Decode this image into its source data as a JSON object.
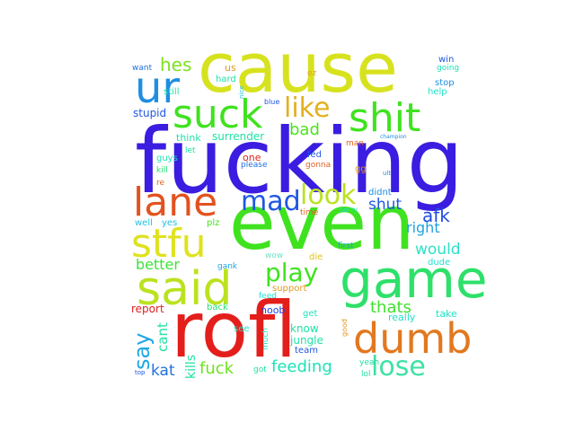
{
  "colors": {
    "background": "#ffffff"
  },
  "words": [
    {
      "text": "cause",
      "color": "#d7e21f"
    },
    {
      "text": "fucking",
      "color": "#3a1de0"
    },
    {
      "text": "even",
      "color": "#3fe21f"
    },
    {
      "text": "rofl",
      "color": "#e31e1b"
    },
    {
      "text": "game",
      "color": "#2ee06a"
    },
    {
      "text": "said",
      "color": "#bbe21f"
    },
    {
      "text": "stfu",
      "color": "#dfe21f"
    },
    {
      "text": "lane",
      "color": "#e2521f"
    },
    {
      "text": "suck",
      "color": "#3fe21f"
    },
    {
      "text": "shit",
      "color": "#3fe21f"
    },
    {
      "text": "ur",
      "color": "#1f8ee2"
    },
    {
      "text": "dumb",
      "color": "#e2781f"
    },
    {
      "text": "like",
      "color": "#e2b01f"
    },
    {
      "text": "look",
      "color": "#bbe21f"
    },
    {
      "text": "mad",
      "color": "#1f57e2"
    },
    {
      "text": "play",
      "color": "#3fe21f"
    },
    {
      "text": "lose",
      "color": "#3fe2a5"
    },
    {
      "text": "say",
      "color": "#1fa7e2"
    },
    {
      "text": "hes",
      "color": "#7ee21f"
    },
    {
      "text": "bad",
      "color": "#4ce21f"
    },
    {
      "text": "afk",
      "color": "#1f4ee2"
    },
    {
      "text": "right",
      "color": "#1fa2e2"
    },
    {
      "text": "shut",
      "color": "#1f57e2"
    },
    {
      "text": "would",
      "color": "#2ee0c7"
    },
    {
      "text": "better",
      "color": "#3fe23a"
    },
    {
      "text": "thats",
      "color": "#3fe22c"
    },
    {
      "text": "feeding",
      "color": "#1fe2b6"
    },
    {
      "text": "fuck",
      "color": "#6ee21f"
    },
    {
      "text": "kat",
      "color": "#1f70e2"
    },
    {
      "text": "cant",
      "color": "#1fe2a5"
    },
    {
      "text": "kills",
      "color": "#1fe2a5"
    },
    {
      "text": "report",
      "color": "#e21f1f"
    },
    {
      "text": "back",
      "color": "#1fe270"
    },
    {
      "text": "noob",
      "color": "#1f44e2"
    },
    {
      "text": "support",
      "color": "#e2981f"
    },
    {
      "text": "feed",
      "color": "#1fe2d7"
    },
    {
      "text": "get",
      "color": "#1fe2c0"
    },
    {
      "text": "know",
      "color": "#1fe2a5"
    },
    {
      "text": "jungle",
      "color": "#1fe2a5"
    },
    {
      "text": "team",
      "color": "#1f57e2"
    },
    {
      "text": "really",
      "color": "#1fe2c7"
    },
    {
      "text": "take",
      "color": "#1fe2c7"
    },
    {
      "text": "dude",
      "color": "#1fe2d7"
    },
    {
      "text": "first",
      "color": "#1fa2e2"
    },
    {
      "text": "die",
      "color": "#e2c21f"
    },
    {
      "text": "wow",
      "color": "#6ee2c4"
    },
    {
      "text": "gank",
      "color": "#1fa2e2"
    },
    {
      "text": "plz",
      "color": "#4ce21f"
    },
    {
      "text": "well",
      "color": "#1fc2e2"
    },
    {
      "text": "yes",
      "color": "#1fc2e2"
    },
    {
      "text": "time",
      "color": "#e2611f"
    },
    {
      "text": "sorry",
      "color": "#1fe2c7"
    },
    {
      "text": "didnt",
      "color": "#1f8ee2"
    },
    {
      "text": "please",
      "color": "#1f70e2"
    },
    {
      "text": "gonna",
      "color": "#e2611f"
    },
    {
      "text": "one",
      "color": "#e2231f"
    },
    {
      "text": "fed",
      "color": "#1f57e2"
    },
    {
      "text": "man",
      "color": "#e2611f"
    },
    {
      "text": "surrender",
      "color": "#1fe2a5"
    },
    {
      "text": "think",
      "color": "#1fe2a5"
    },
    {
      "text": "guys",
      "color": "#1fe2b6"
    },
    {
      "text": "kill",
      "color": "#1fe270"
    },
    {
      "text": "re",
      "color": "#e2611f"
    },
    {
      "text": "let",
      "color": "#1fe2a5"
    },
    {
      "text": "stupid",
      "color": "#1f57e2"
    },
    {
      "text": "still",
      "color": "#1fe2a5"
    },
    {
      "text": "want",
      "color": "#1f70e2"
    },
    {
      "text": "us",
      "color": "#e2981f"
    },
    {
      "text": "hard",
      "color": "#1fe2a5"
    },
    {
      "text": "blue",
      "color": "#1f57e2"
    },
    {
      "text": "nice",
      "color": "#1fc2e2"
    },
    {
      "text": "ez",
      "color": "#e2a21f"
    },
    {
      "text": "win",
      "color": "#1f57e2"
    },
    {
      "text": "going",
      "color": "#1fe2b6"
    },
    {
      "text": "stop",
      "color": "#1f8ee2"
    },
    {
      "text": "help",
      "color": "#1fe2c7"
    },
    {
      "text": "champion",
      "color": "#1f8ee2"
    },
    {
      "text": "ult",
      "color": "#1f8ee2"
    },
    {
      "text": "gg",
      "color": "#e2981f"
    },
    {
      "text": "good",
      "color": "#e2981f"
    },
    {
      "text": "yeah",
      "color": "#1fe2a5"
    },
    {
      "text": "lol",
      "color": "#1fe2a5"
    },
    {
      "text": "got",
      "color": "#1fe2a5"
    },
    {
      "text": "much",
      "color": "#1fe2c7"
    },
    {
      "text": "see",
      "color": "#1fe2c7"
    },
    {
      "text": "top",
      "color": "#1f57e2"
    }
  ]
}
